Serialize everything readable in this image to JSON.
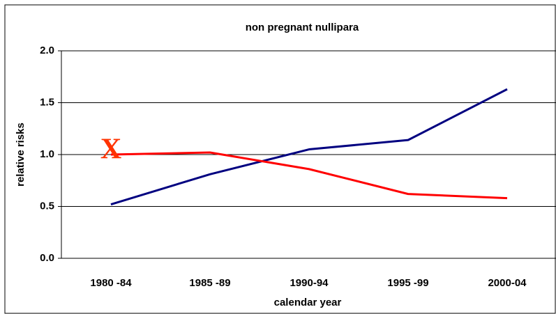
{
  "chart_data": {
    "type": "line",
    "title": "non pregnant nullipara",
    "x_label": "calendar year",
    "y_label": "relative risks",
    "categories": [
      "1980 -84",
      "1985 -89",
      "1990-94",
      "1995 -99",
      "2000-04"
    ],
    "series": [
      {
        "color": "#000080",
        "values": [
          0.52,
          0.81,
          1.05,
          1.14,
          1.63
        ]
      },
      {
        "color": "#ff0000",
        "values": [
          1.0,
          1.02,
          0.86,
          0.62,
          0.58
        ]
      }
    ],
    "ylim": [
      0,
      2
    ],
    "yticks": [
      {
        "value": 0,
        "label": "0.0"
      },
      0.5,
      {
        "value": 1,
        "label": "1.0"
      },
      1.5,
      {
        "value": 2,
        "label": "2.0"
      }
    ],
    "grid": true,
    "annotations": [
      {
        "text": "X",
        "category": 0,
        "y": 1.0,
        "color": "#ff3300"
      }
    ]
  }
}
